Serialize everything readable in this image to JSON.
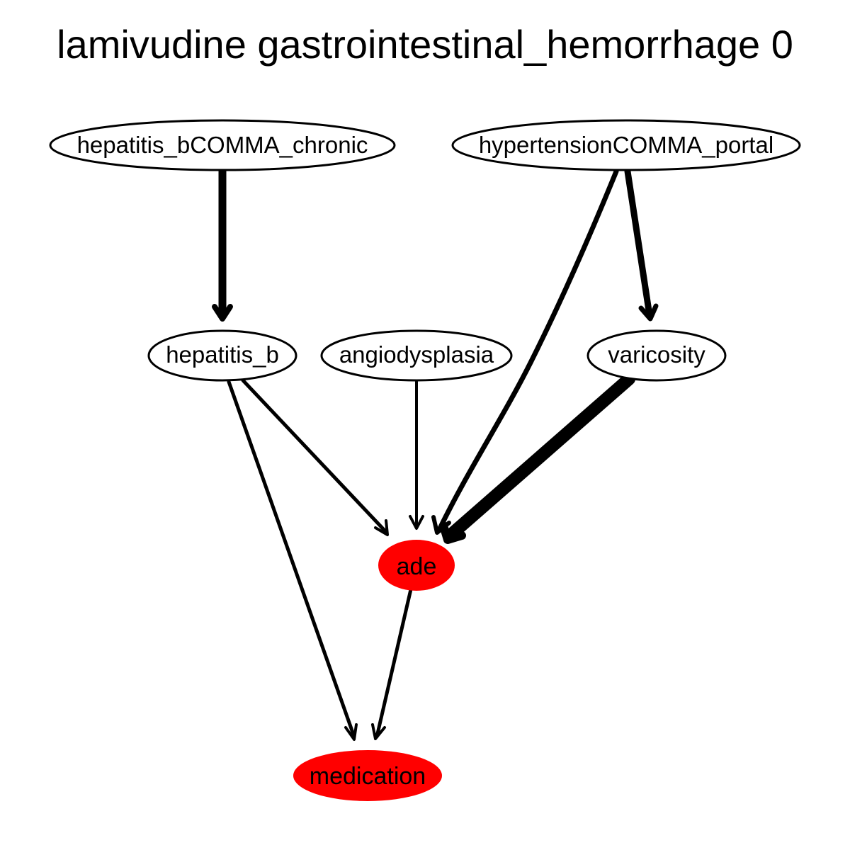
{
  "title": "lamivudine gastrointestinal_hemorrhage 0",
  "colors": {
    "highlight_fill": "#ff0000",
    "default_fill": "#ffffff",
    "stroke": "#000000"
  },
  "nodes": {
    "hepatitis_b_chronic": {
      "label": "hepatitis_bCOMMA_chronic",
      "highlighted": false
    },
    "hypertension_portal": {
      "label": "hypertensionCOMMA_portal",
      "highlighted": false
    },
    "hepatitis_b": {
      "label": "hepatitis_b",
      "highlighted": false
    },
    "angiodysplasia": {
      "label": "angiodysplasia",
      "highlighted": false
    },
    "varicosity": {
      "label": "varicosity",
      "highlighted": false
    },
    "ade": {
      "label": "ade",
      "highlighted": true
    },
    "medication": {
      "label": "medication",
      "highlighted": true
    }
  },
  "edges": [
    {
      "from": "hepatitis_bCOMMA_chronic",
      "to": "hepatitis_b"
    },
    {
      "from": "hypertensionCOMMA_portal",
      "to": "ade"
    },
    {
      "from": "hypertensionCOMMA_portal",
      "to": "varicosity"
    },
    {
      "from": "hepatitis_b",
      "to": "ade"
    },
    {
      "from": "hepatitis_b",
      "to": "medication"
    },
    {
      "from": "angiodysplasia",
      "to": "ade"
    },
    {
      "from": "varicosity",
      "to": "ade"
    },
    {
      "from": "ade",
      "to": "medication"
    }
  ]
}
